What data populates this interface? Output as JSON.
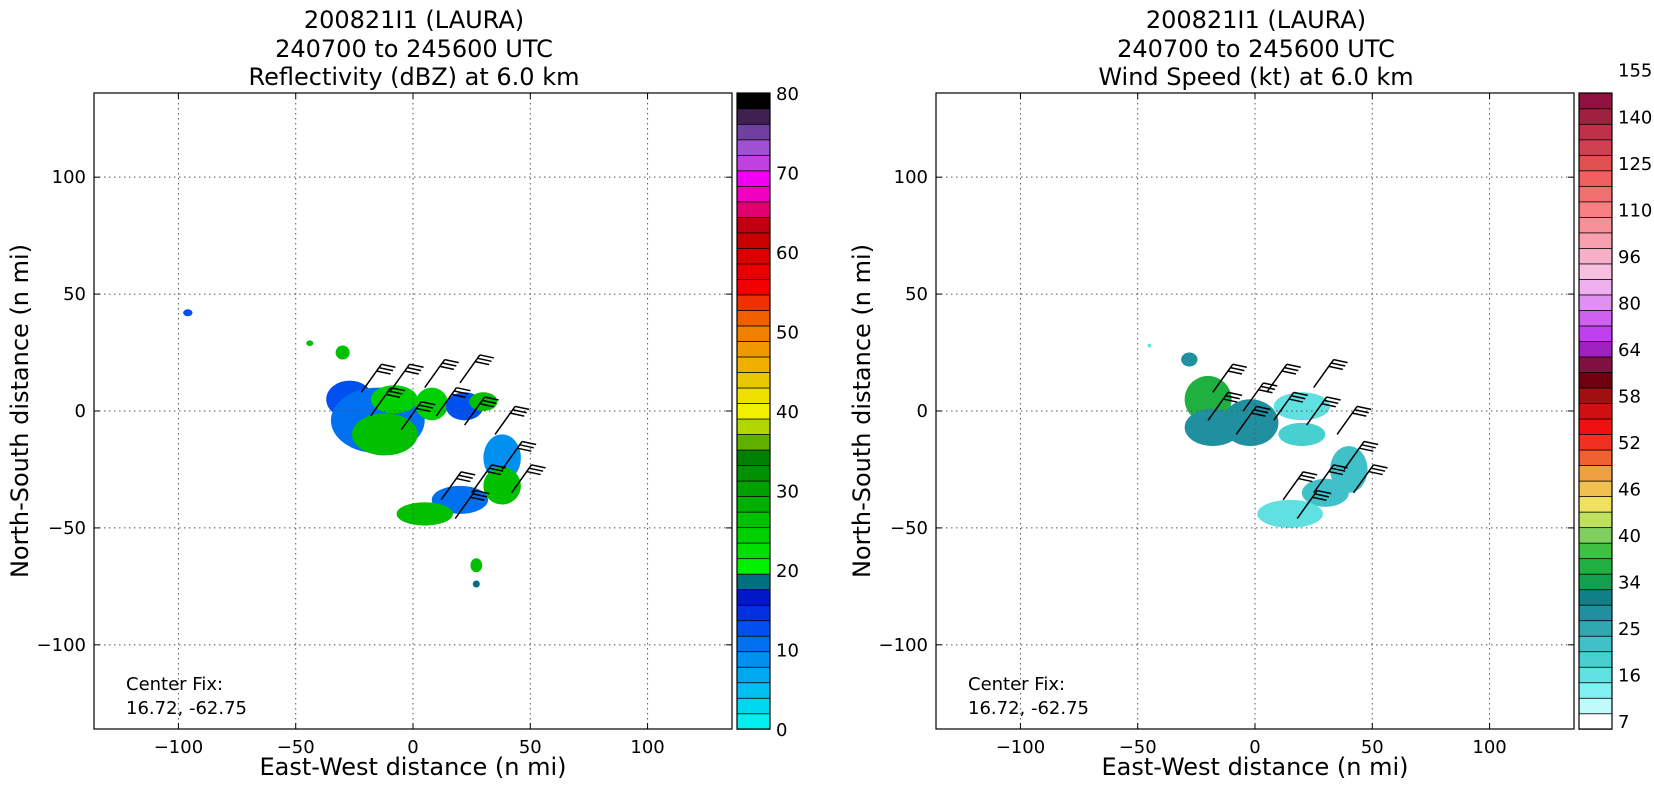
{
  "chart_data": [
    {
      "type": "heatmap",
      "title": [
        "200821I1 (LAURA)",
        "240700 to 245600 UTC",
        "Reflectivity (dBZ) at 6.0 km"
      ],
      "xlabel": "East-West distance (n mi)",
      "ylabel": "North-South distance (n mi)",
      "xlim": [
        -136,
        136
      ],
      "ylim": [
        -136,
        136
      ],
      "xticks": [
        -100,
        -50,
        0,
        50,
        100
      ],
      "yticks": [
        100,
        50,
        0,
        -50,
        -100
      ],
      "grid": true,
      "annotation": [
        "Center Fix:",
        "16.72, -62.75"
      ],
      "colorbar": {
        "min": 0,
        "max": 80,
        "step": 2.5,
        "ticks": [
          0,
          10,
          20,
          30,
          40,
          50,
          60,
          70,
          80
        ],
        "colors": [
          "#00efef",
          "#00d8ef",
          "#00c0f0",
          "#00a8f0",
          "#0090f0",
          "#0070f0",
          "#0050f0",
          "#0030e0",
          "#0018c8",
          "#007080",
          "#00f000",
          "#00e000",
          "#00d000",
          "#00c000",
          "#00b000",
          "#00a000",
          "#009000",
          "#008000",
          "#60b000",
          "#b0d800",
          "#f0f000",
          "#f0e000",
          "#e8c800",
          "#f0b000",
          "#f09800",
          "#f08000",
          "#f06000",
          "#f03000",
          "#f00000",
          "#e80000",
          "#d80000",
          "#c80000",
          "#c00010",
          "#e00070",
          "#f000c0",
          "#f000f0",
          "#c040e0",
          "#a050d0",
          "#7040a0",
          "#402050",
          "#000000"
        ]
      },
      "regions": [
        {
          "cx": -27,
          "cy": 5,
          "rx": 10,
          "ry": 8,
          "color": "#0050f0"
        },
        {
          "cx": -15,
          "cy": -4,
          "rx": 20,
          "ry": 14,
          "color": "#0070f0"
        },
        {
          "cx": -12,
          "cy": -10,
          "rx": 14,
          "ry": 9,
          "color": "#00c000"
        },
        {
          "cx": -8,
          "cy": 5,
          "rx": 10,
          "ry": 6,
          "color": "#00d000"
        },
        {
          "cx": 8,
          "cy": 3,
          "rx": 7,
          "ry": 7,
          "color": "#00d000"
        },
        {
          "cx": 22,
          "cy": 2,
          "rx": 8,
          "ry": 6,
          "color": "#0050f0"
        },
        {
          "cx": 30,
          "cy": 4,
          "rx": 6,
          "ry": 4,
          "color": "#00c000"
        },
        {
          "cx": 38,
          "cy": -20,
          "rx": 8,
          "ry": 10,
          "color": "#0090f0"
        },
        {
          "cx": 38,
          "cy": -32,
          "rx": 8,
          "ry": 8,
          "color": "#00c000"
        },
        {
          "cx": 20,
          "cy": -38,
          "rx": 12,
          "ry": 6,
          "color": "#0070f0"
        },
        {
          "cx": 5,
          "cy": -44,
          "rx": 12,
          "ry": 5,
          "color": "#00c000"
        },
        {
          "cx": -30,
          "cy": 25,
          "rx": 3,
          "ry": 3,
          "color": "#00c000"
        },
        {
          "cx": -96,
          "cy": 42,
          "rx": 2,
          "ry": 1.5,
          "color": "#0050f0"
        },
        {
          "cx": 27,
          "cy": -66,
          "rx": 2.5,
          "ry": 3,
          "color": "#00c000"
        },
        {
          "cx": 27,
          "cy": -74,
          "rx": 1.5,
          "ry": 1.5,
          "color": "#007080"
        },
        {
          "cx": -44,
          "cy": 29,
          "rx": 1.5,
          "ry": 1.2,
          "color": "#00c000"
        }
      ],
      "barbs": [
        {
          "x": -22,
          "y": 8
        },
        {
          "x": -10,
          "y": 8
        },
        {
          "x": 5,
          "y": 10
        },
        {
          "x": 20,
          "y": 12
        },
        {
          "x": -18,
          "y": -2
        },
        {
          "x": -5,
          "y": -8
        },
        {
          "x": 10,
          "y": -2
        },
        {
          "x": 22,
          "y": -6
        },
        {
          "x": 35,
          "y": -10
        },
        {
          "x": 38,
          "y": -25
        },
        {
          "x": 42,
          "y": -35
        },
        {
          "x": 25,
          "y": -35
        },
        {
          "x": 12,
          "y": -38
        },
        {
          "x": 18,
          "y": -46
        }
      ]
    },
    {
      "type": "heatmap",
      "title": [
        "200821I1 (LAURA)",
        "240700 to 245600 UTC",
        "Wind Speed (kt) at 6.0 km"
      ],
      "xlabel": "East-West distance (n mi)",
      "ylabel": "North-South distance (n mi)",
      "xlim": [
        -136,
        136
      ],
      "ylim": [
        -136,
        136
      ],
      "xticks": [
        -100,
        -50,
        0,
        50,
        100
      ],
      "yticks": [
        100,
        50,
        0,
        -50,
        -100
      ],
      "grid": true,
      "annotation": [
        "Center Fix:",
        "16.72, -62.75"
      ],
      "colorbar": {
        "ticks": [
          7,
          16,
          25,
          34,
          40,
          46,
          52,
          58,
          64,
          80,
          96,
          110,
          125,
          140,
          155
        ],
        "colors": [
          "#ffffff",
          "#c0fafa",
          "#80f0f0",
          "#60e0e0",
          "#48d0d0",
          "#40c0c8",
          "#30a8b0",
          "#2090a0",
          "#108088",
          "#10a050",
          "#20b040",
          "#40c040",
          "#80d060",
          "#c0e060",
          "#f0e060",
          "#f0c050",
          "#f0a040",
          "#f06030",
          "#f03020",
          "#f01010",
          "#d01010",
          "#a01010",
          "#700010",
          "#801040",
          "#a020c0",
          "#c040f0",
          "#d060f0",
          "#e090f0",
          "#f0b0f0",
          "#f8c0e0",
          "#f8b0c8",
          "#f8a0b0",
          "#f89098",
          "#f88080",
          "#f07070",
          "#f06060",
          "#e05050",
          "#d04050",
          "#c03048",
          "#a02040",
          "#901040"
        ]
      },
      "regions": [
        {
          "cx": -28,
          "cy": 22,
          "rx": 3.5,
          "ry": 3,
          "color": "#2090a0"
        },
        {
          "cx": -20,
          "cy": 5,
          "rx": 10,
          "ry": 10,
          "color": "#20b040"
        },
        {
          "cx": -18,
          "cy": -7,
          "rx": 12,
          "ry": 8,
          "color": "#2090a0"
        },
        {
          "cx": -2,
          "cy": -5,
          "rx": 12,
          "ry": 10,
          "color": "#2090a0"
        },
        {
          "cx": 20,
          "cy": 2,
          "rx": 12,
          "ry": 6,
          "color": "#60e0e0"
        },
        {
          "cx": 20,
          "cy": -10,
          "rx": 10,
          "ry": 5,
          "color": "#48d0d0"
        },
        {
          "cx": 40,
          "cy": -25,
          "rx": 8,
          "ry": 10,
          "color": "#40c0c8"
        },
        {
          "cx": 30,
          "cy": -35,
          "rx": 10,
          "ry": 6,
          "color": "#40c0c8"
        },
        {
          "cx": 15,
          "cy": -44,
          "rx": 14,
          "ry": 6,
          "color": "#60e0e0"
        },
        {
          "cx": -45,
          "cy": 28,
          "rx": 0.8,
          "ry": 0.8,
          "color": "#60e0e0"
        }
      ],
      "barbs": [
        {
          "x": -18,
          "y": 8
        },
        {
          "x": -5,
          "y": 0
        },
        {
          "x": 5,
          "y": 8
        },
        {
          "x": 25,
          "y": 10
        },
        {
          "x": -20,
          "y": -4
        },
        {
          "x": -8,
          "y": -10
        },
        {
          "x": 8,
          "y": -4
        },
        {
          "x": 22,
          "y": -6
        },
        {
          "x": 35,
          "y": -10
        },
        {
          "x": 38,
          "y": -25
        },
        {
          "x": 42,
          "y": -35
        },
        {
          "x": 25,
          "y": -35
        },
        {
          "x": 12,
          "y": -38
        },
        {
          "x": 18,
          "y": -46
        }
      ]
    }
  ]
}
